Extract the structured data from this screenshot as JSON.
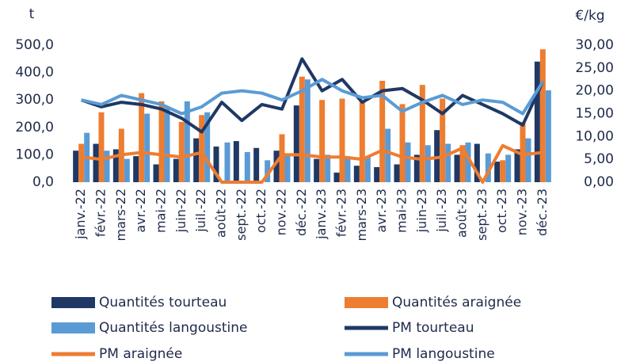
{
  "chart_data": {
    "type": "combo",
    "y_label": "t",
    "y2_label": "€/kg",
    "categories": [
      "janv.-22",
      "févr.-22",
      "mars-22",
      "avr.-22",
      "mai-22",
      "juin-22",
      "juil.-22",
      "août-22",
      "sept.-22",
      "oct.-22",
      "nov.-22",
      "déc.-22",
      "janv.-23",
      "févr.-23",
      "mars-23",
      "avr.-23",
      "mai-23",
      "juin-23",
      "juil.-23",
      "août-23",
      "sept.-23",
      "oct.-23",
      "nov.-23",
      "déc.-23"
    ],
    "ylim": [
      0,
      500
    ],
    "yticks": [
      {
        "value": 0,
        "label": "0,0"
      },
      {
        "value": 100,
        "label": "100,0"
      },
      {
        "value": 200,
        "label": "200,0"
      },
      {
        "value": 300,
        "label": "300,0"
      },
      {
        "value": 400,
        "label": "400,0"
      },
      {
        "value": 500,
        "label": "500,0"
      }
    ],
    "y2lim": [
      0,
      30
    ],
    "y2ticks": [
      {
        "value": 0,
        "label": "0,00"
      },
      {
        "value": 5,
        "label": "5,00"
      },
      {
        "value": 10,
        "label": "10,00"
      },
      {
        "value": 15,
        "label": "15,00"
      },
      {
        "value": 20,
        "label": "20,00"
      },
      {
        "value": 25,
        "label": "25,00"
      },
      {
        "value": 30,
        "label": "30,00"
      }
    ],
    "series": [
      {
        "name": "Quantités tourteau",
        "type": "bar",
        "color": "#1f3864",
        "values": [
          115,
          140,
          120,
          95,
          65,
          85,
          160,
          130,
          150,
          125,
          115,
          280,
          85,
          35,
          60,
          55,
          65,
          100,
          190,
          100,
          140,
          75,
          120,
          440
        ]
      },
      {
        "name": "Quantités araignée",
        "type": "bar",
        "color": "#ed7d31",
        "values": [
          140,
          255,
          195,
          325,
          295,
          220,
          245,
          0,
          0,
          0,
          175,
          385,
          300,
          305,
          295,
          370,
          285,
          355,
          305,
          135,
          0,
          80,
          220,
          485
        ]
      },
      {
        "name": "Quantités langoustine",
        "type": "bar",
        "color": "#5b9bd5",
        "values": [
          180,
          115,
          85,
          250,
          270,
          295,
          255,
          145,
          110,
          80,
          100,
          375,
          100,
          95,
          95,
          195,
          145,
          135,
          140,
          145,
          105,
          100,
          160,
          335
        ]
      },
      {
        "name": "PM tourteau",
        "type": "line",
        "axis": "y2",
        "color": "#1f3864",
        "values": [
          18,
          16.5,
          17.5,
          17,
          16,
          14,
          11,
          17.5,
          13.5,
          17,
          16,
          27,
          20,
          22.5,
          17.5,
          20,
          20.5,
          18,
          15,
          19,
          17,
          15,
          12.5,
          22
        ]
      },
      {
        "name": "PM araignée",
        "type": "line",
        "axis": "y2",
        "color": "#ed7d31",
        "values": [
          5.5,
          5,
          6,
          6.5,
          6,
          5.5,
          6.5,
          0,
          0,
          0,
          6,
          6,
          5.5,
          5.5,
          5,
          7,
          5.5,
          5,
          5.5,
          7.5,
          0,
          8,
          6,
          6.5
        ]
      },
      {
        "name": "PM langoustine",
        "type": "line",
        "axis": "y2",
        "color": "#5b9bd5",
        "values": [
          18,
          17,
          19,
          18,
          17,
          15,
          16.5,
          19.5,
          20,
          19.5,
          18,
          20,
          22.5,
          20,
          18.5,
          19,
          15.5,
          17.5,
          19,
          17,
          18,
          17.5,
          15,
          22
        ]
      }
    ]
  }
}
